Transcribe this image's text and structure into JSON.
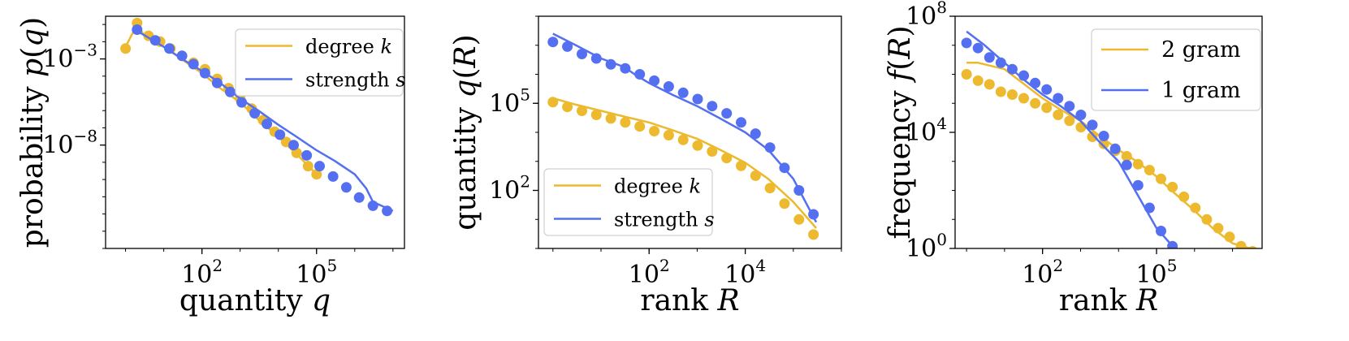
{
  "colors": {
    "yellow": "#EDB92E",
    "blue": "#5470F0",
    "axis": "#000000",
    "bg": "#ffffff"
  },
  "chart_data": [
    {
      "type": "line",
      "scale": "log-log",
      "title": "",
      "xlabel": {
        "text": "quantity ",
        "var": "q"
      },
      "ylabel": {
        "text": "probability ",
        "func": "p",
        "arg": "q"
      },
      "xlim": [
        0.3,
        20000000.0
      ],
      "ylim": [
        1e-14,
        0.3
      ],
      "xticks": [
        {
          "exp": "2",
          "value": 100
        },
        {
          "exp": "5",
          "value": 100000
        }
      ],
      "yticks": [
        {
          "exp": "−3",
          "value": 0.001
        },
        {
          "exp": "−8",
          "value": 1e-08
        }
      ],
      "legend": {
        "position": "top-right",
        "entries": [
          {
            "text": "degree ",
            "var": "k",
            "color": "yellow"
          },
          {
            "text": "strength ",
            "var": "s",
            "color": "blue"
          }
        ]
      },
      "series": [
        {
          "name": "degree k",
          "color": "yellow",
          "line": [
            [
              1,
              0.005
            ],
            [
              2,
              0.1
            ],
            [
              3,
              0.025
            ],
            [
              6,
              0.01
            ],
            [
              15,
              0.003
            ],
            [
              40,
              0.0006
            ],
            [
              100,
              0.00015
            ],
            [
              300,
              2e-05
            ],
            [
              1000,
              3e-06
            ],
            [
              3000,
              3e-07
            ],
            [
              10000,
              3e-08
            ],
            [
              30000,
              3e-09
            ],
            [
              100000,
              2e-10
            ]
          ],
          "points": [
            [
              1,
              0.004
            ],
            [
              2,
              0.12
            ],
            [
              4,
              0.022
            ],
            [
              8,
              0.01
            ],
            [
              15,
              0.004
            ],
            [
              30,
              0.0015
            ],
            [
              60,
              0.0006
            ],
            [
              120,
              0.00025
            ],
            [
              250,
              7e-05
            ],
            [
              500,
              2e-05
            ],
            [
              1000,
              5e-06
            ],
            [
              2000,
              1.3e-06
            ],
            [
              4000,
              2.8e-07
            ],
            [
              8000,
              6e-08
            ],
            [
              16000,
              1.5e-08
            ],
            [
              30000,
              3.5e-09
            ],
            [
              60000,
              6e-10
            ],
            [
              100000,
              2e-10
            ]
          ]
        },
        {
          "name": "strength s",
          "color": "blue",
          "line": [
            [
              1.5,
              0.06
            ],
            [
              3,
              0.025
            ],
            [
              10,
              0.005
            ],
            [
              30,
              0.001
            ],
            [
              100,
              0.0002
            ],
            [
              300,
              4e-05
            ],
            [
              1000,
              5e-06
            ],
            [
              3000,
              1e-06
            ],
            [
              10000,
              1.5e-07
            ],
            [
              30000,
              3e-08
            ],
            [
              100000,
              5e-09
            ],
            [
              300000,
              1.2e-09
            ],
            [
              1000000,
              2e-10
            ],
            [
              2000000,
              3e-11
            ],
            [
              3000000,
              5e-12
            ],
            [
              5000000,
              3e-12
            ],
            [
              10000000,
              1.5e-12
            ]
          ],
          "points": [
            [
              2,
              0.05
            ],
            [
              6,
              0.012
            ],
            [
              14,
              0.004
            ],
            [
              30,
              0.0015
            ],
            [
              60,
              0.0005
            ],
            [
              120,
              0.00015
            ],
            [
              250,
              4e-05
            ],
            [
              550,
              1.2e-05
            ],
            [
              1100,
              3e-06
            ],
            [
              2400,
              7e-07
            ],
            [
              5000,
              1.7e-07
            ],
            [
              11000,
              4e-08
            ],
            [
              25000,
              1e-08
            ],
            [
              55000,
              2.5e-09
            ],
            [
              120000,
              6e-10
            ],
            [
              270000,
              1.5e-10
            ],
            [
              600000,
              3.5e-11
            ],
            [
              1300000,
              9e-12
            ],
            [
              3000000,
              3e-12
            ],
            [
              7000000,
              1.5e-12
            ]
          ]
        }
      ]
    },
    {
      "type": "line",
      "scale": "log-log",
      "title": "",
      "xlabel": {
        "text": "rank ",
        "var": "R"
      },
      "ylabel": {
        "text": "quantity ",
        "func": "q",
        "arg": "R"
      },
      "xlim": [
        0.5,
        1000000.0
      ],
      "ylim": [
        1,
        100000000.0
      ],
      "xticks": [
        {
          "exp": "2",
          "value": 100
        },
        {
          "exp": "4",
          "value": 10000
        }
      ],
      "yticks": [
        {
          "exp": "5",
          "value": 100000
        },
        {
          "exp": "2",
          "value": 100
        }
      ],
      "legend": {
        "position": "bottom-left",
        "entries": [
          {
            "text": "degree ",
            "var": "k",
            "color": "yellow"
          },
          {
            "text": "strength ",
            "var": "s",
            "color": "blue"
          }
        ]
      },
      "series": [
        {
          "name": "degree k",
          "color": "yellow",
          "line": [
            [
              1,
              150000
            ],
            [
              3,
              90000
            ],
            [
              10,
              55000
            ],
            [
              30,
              35000
            ],
            [
              100,
              22000
            ],
            [
              300,
              12000
            ],
            [
              1000,
              6000
            ],
            [
              3000,
              2500
            ],
            [
              10000,
              900
            ],
            [
              30000,
              250
            ],
            [
              100000,
              40
            ],
            [
              300000,
              5
            ]
          ],
          "points": [
            [
              1,
              110000
            ],
            [
              2,
              75000
            ],
            [
              4,
              55000
            ],
            [
              8,
              40000
            ],
            [
              16,
              30000
            ],
            [
              32,
              22000
            ],
            [
              64,
              16000
            ],
            [
              128,
              11000
            ],
            [
              256,
              8000
            ],
            [
              512,
              5500
            ],
            [
              1024,
              3500
            ],
            [
              2048,
              2200
            ],
            [
              4096,
              1300
            ],
            [
              8192,
              700
            ],
            [
              16384,
              320
            ],
            [
              32768,
              120
            ],
            [
              65536,
              35
            ],
            [
              131072,
              10
            ],
            [
              262144,
              3
            ]
          ]
        },
        {
          "name": "strength s",
          "color": "blue",
          "line": [
            [
              1,
              25000000
            ],
            [
              3,
              10000000
            ],
            [
              10,
              3500000
            ],
            [
              30,
              1800000
            ],
            [
              50,
              1000000
            ],
            [
              100,
              500000
            ],
            [
              300,
              200000
            ],
            [
              1000,
              80000
            ],
            [
              3000,
              30000
            ],
            [
              10000,
              10000
            ],
            [
              30000,
              2500
            ],
            [
              100000,
              250
            ],
            [
              300000,
              8
            ]
          ],
          "points": [
            [
              1,
              13000000
            ],
            [
              2,
              9000000
            ],
            [
              4,
              5000000
            ],
            [
              8,
              3500000
            ],
            [
              16,
              2200000
            ],
            [
              32,
              1600000
            ],
            [
              64,
              1000000
            ],
            [
              128,
              600000
            ],
            [
              256,
              380000
            ],
            [
              512,
              230000
            ],
            [
              1024,
              140000
            ],
            [
              2048,
              80000
            ],
            [
              4096,
              45000
            ],
            [
              8192,
              22000
            ],
            [
              16384,
              9000
            ],
            [
              32768,
              3000
            ],
            [
              65536,
              600
            ],
            [
              131072,
              100
            ],
            [
              262144,
              15
            ]
          ]
        }
      ]
    },
    {
      "type": "line",
      "scale": "log-log",
      "title": "",
      "xlabel": {
        "text": "rank ",
        "var": "R"
      },
      "ylabel": {
        "text": "frequency ",
        "func": "f",
        "arg": "R"
      },
      "xlim": [
        0.5,
        60000000.0
      ],
      "ylim": [
        1,
        100000000.0
      ],
      "xticks": [
        {
          "exp": "2",
          "value": 100
        },
        {
          "exp": "5",
          "value": 100000
        }
      ],
      "yticks": [
        {
          "exp": "8",
          "value": 100000000
        },
        {
          "exp": "4",
          "value": 10000
        },
        {
          "exp": "0",
          "value": 1
        }
      ],
      "legend": {
        "position": "top-right",
        "entries": [
          {
            "text": "2 gram",
            "var": "",
            "color": "yellow"
          },
          {
            "text": "1 gram",
            "var": "",
            "color": "blue"
          }
        ]
      },
      "series": [
        {
          "name": "2 gram",
          "color": "yellow",
          "line": [
            [
              1,
              2500000
            ],
            [
              2,
              2500000
            ],
            [
              10,
              1500000
            ],
            [
              30,
              500000
            ],
            [
              100,
              150000
            ],
            [
              300,
              60000
            ],
            [
              1000,
              25000
            ],
            [
              3000,
              8000
            ],
            [
              10000,
              2500
            ],
            [
              30000,
              1000
            ],
            [
              100000,
              300
            ],
            [
              300000,
              80
            ],
            [
              1000000,
              20
            ],
            [
              3000000,
              5
            ],
            [
              10000000,
              1.5
            ],
            [
              30000000,
              1
            ]
          ],
          "points": [
            [
              1,
              1000000
            ],
            [
              2,
              600000
            ],
            [
              4,
              450000
            ],
            [
              8,
              250000
            ],
            [
              16,
              200000
            ],
            [
              32,
              150000
            ],
            [
              64,
              100000
            ],
            [
              128,
              70000
            ],
            [
              256,
              40000
            ],
            [
              512,
              25000
            ],
            [
              1024,
              15000
            ],
            [
              2048,
              7000
            ],
            [
              4096,
              4000
            ],
            [
              8192,
              2300
            ],
            [
              16384,
              1500
            ],
            [
              32768,
              800
            ],
            [
              65536,
              500
            ],
            [
              131072,
              250
            ],
            [
              262144,
              130
            ],
            [
              524288,
              60
            ],
            [
              1048576,
              25
            ],
            [
              2097152,
              10
            ],
            [
              4194304,
              5
            ],
            [
              8388608,
              2.5
            ],
            [
              16777216,
              1.2
            ],
            [
              33554432,
              0.8
            ]
          ]
        },
        {
          "name": "1 gram",
          "color": "blue",
          "line": [
            [
              1,
              30000000
            ],
            [
              3,
              10000000
            ],
            [
              10,
              2500000
            ],
            [
              30,
              700000
            ],
            [
              100,
              200000
            ],
            [
              300,
              80000
            ],
            [
              1000,
              25000
            ],
            [
              3000,
              5000
            ],
            [
              10000,
              1000
            ],
            [
              30000,
              80
            ],
            [
              100000,
              5
            ],
            [
              300000,
              1
            ]
          ],
          "points": [
            [
              1,
              12000000
            ],
            [
              2,
              8000000
            ],
            [
              4,
              3800000
            ],
            [
              8,
              2500000
            ],
            [
              16,
              1500000
            ],
            [
              32,
              900000
            ],
            [
              64,
              500000
            ],
            [
              128,
              300000
            ],
            [
              256,
              150000
            ],
            [
              512,
              80000
            ],
            [
              1024,
              40000
            ],
            [
              2048,
              18000
            ],
            [
              4096,
              7500
            ],
            [
              8192,
              2700
            ],
            [
              16384,
              750
            ],
            [
              32768,
              150
            ],
            [
              65536,
              25
            ],
            [
              131072,
              4
            ],
            [
              262144,
              1.2
            ]
          ]
        }
      ]
    }
  ]
}
